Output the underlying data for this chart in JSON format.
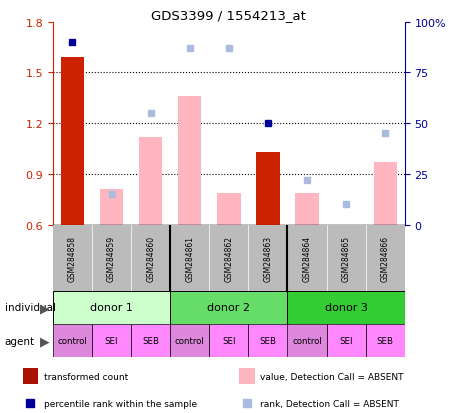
{
  "title": "GDS3399 / 1554213_at",
  "samples": [
    "GSM284858",
    "GSM284859",
    "GSM284860",
    "GSM284861",
    "GSM284862",
    "GSM284863",
    "GSM284864",
    "GSM284865",
    "GSM284866"
  ],
  "red_bars": [
    1.59,
    null,
    null,
    null,
    null,
    1.03,
    null,
    null,
    null
  ],
  "pink_bars": [
    null,
    0.81,
    1.12,
    1.36,
    0.79,
    null,
    0.79,
    null,
    0.97
  ],
  "blue_pct": [
    90,
    null,
    null,
    null,
    null,
    50,
    null,
    null,
    null
  ],
  "light_blue_pct": [
    null,
    15,
    55,
    87,
    87,
    null,
    22,
    10,
    45
  ],
  "ylim_left": [
    0.6,
    1.8
  ],
  "ylim_right": [
    0,
    100
  ],
  "yticks_left": [
    0.6,
    0.9,
    1.2,
    1.5,
    1.8
  ],
  "yticks_right": [
    0,
    25,
    50,
    75,
    100
  ],
  "ytick_right_labels": [
    "0",
    "25",
    "50",
    "75",
    "100%"
  ],
  "donor_labels": [
    "donor 1",
    "donor 2",
    "donor 3"
  ],
  "donor_colors": [
    "#CCFFCC",
    "#66DD66",
    "#33CC33"
  ],
  "donor_ranges": [
    [
      0,
      3
    ],
    [
      3,
      6
    ],
    [
      6,
      9
    ]
  ],
  "agent_labels": [
    "control",
    "SEI",
    "SEB",
    "control",
    "SEI",
    "SEB",
    "control",
    "SEI",
    "SEB"
  ],
  "agent_colors": [
    "#DD88DD",
    "#FF88FF",
    "#FF88FF",
    "#DD88DD",
    "#FF88FF",
    "#FF88FF",
    "#DD88DD",
    "#FF88FF",
    "#FF88FF"
  ],
  "red_color": "#CC2200",
  "dark_red_color": "#AA1100",
  "pink_color": "#FFB6C1",
  "blue_color": "#000099",
  "light_blue_color": "#AABBDD",
  "gray_color": "#BBBBBB",
  "individual_label": "individual",
  "agent_label": "agent",
  "bar_width": 0.6,
  "legend_items": [
    {
      "shape": "rect",
      "color": "#AA1100",
      "label": "transformed count"
    },
    {
      "shape": "square",
      "color": "#000099",
      "label": "percentile rank within the sample"
    },
    {
      "shape": "rect",
      "color": "#FFB6C1",
      "label": "value, Detection Call = ABSENT"
    },
    {
      "shape": "square",
      "color": "#AABBDD",
      "label": "rank, Detection Call = ABSENT"
    }
  ]
}
